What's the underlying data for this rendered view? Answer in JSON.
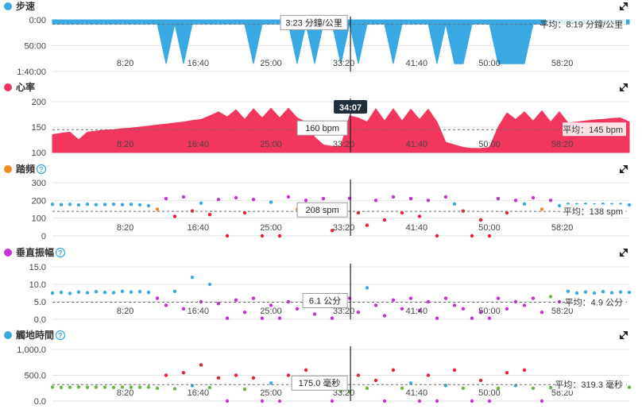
{
  "colors": {
    "pace": "#3aa9e3",
    "heart": "#f2365e",
    "cad_blue": "#3aa9e3",
    "cad_green": "#6ab744",
    "cad_orange": "#f28a27",
    "cad_red": "#ef1c3a",
    "cad_purple": "#c632d5"
  },
  "cursor_time": "34:07",
  "x_ticks": [
    "8:20",
    "16:40",
    "25:00",
    "33:20",
    "41:40",
    "50:00",
    "58:20"
  ],
  "chart_data": [
    {
      "id": "pace",
      "type": "area",
      "title": "步速",
      "has_help": false,
      "yticks": [
        "0:00",
        "50:00",
        "1:40:00"
      ],
      "ylim": [
        0,
        100
      ],
      "y_reversed": true,
      "x_minutes": [
        0,
        1,
        2,
        3,
        4,
        5,
        6,
        7,
        8,
        9,
        10,
        11,
        12,
        13,
        14,
        15,
        16,
        17,
        18,
        19,
        20,
        21,
        22,
        23,
        24,
        25,
        26,
        27,
        28,
        29,
        30,
        31,
        32,
        33,
        34,
        35,
        36,
        37,
        38,
        39,
        40,
        41,
        42,
        43,
        44,
        45,
        46,
        47,
        48,
        49,
        50,
        51,
        52,
        53,
        54,
        55,
        56,
        57,
        58,
        59,
        60,
        61,
        62,
        63,
        64,
        65,
        66
      ],
      "values": [
        8,
        8,
        8,
        8,
        8,
        8,
        8,
        8,
        8,
        8,
        8,
        8,
        8,
        85,
        8,
        85,
        8,
        8,
        8,
        8,
        8,
        8,
        8,
        85,
        8,
        8,
        8,
        8,
        85,
        8,
        85,
        8,
        8,
        85,
        8,
        85,
        8,
        8,
        8,
        85,
        8,
        8,
        8,
        8,
        85,
        8,
        85,
        85,
        8,
        8,
        8,
        85,
        85,
        85,
        85,
        8,
        8,
        8,
        8,
        8,
        8,
        8,
        8,
        8,
        8,
        8,
        8
      ],
      "cursor_label": "3:23 分鐘/公里",
      "avg_label": "平均：8:19 分鐘/公里",
      "avg_value": 8.3
    },
    {
      "id": "heart",
      "type": "area",
      "title": "心率",
      "has_help": false,
      "yticks": [
        "200",
        "150",
        "100"
      ],
      "ylim": [
        100,
        200
      ],
      "x_minutes": [
        0,
        1,
        2,
        3,
        4,
        5,
        6,
        7,
        8,
        9,
        10,
        11,
        12,
        13,
        14,
        15,
        16,
        17,
        18,
        19,
        20,
        21,
        22,
        23,
        24,
        25,
        26,
        27,
        28,
        29,
        30,
        31,
        32,
        33,
        34,
        35,
        36,
        37,
        38,
        39,
        40,
        41,
        42,
        43,
        44,
        45,
        46,
        47,
        48,
        49,
        50,
        51,
        52,
        53,
        54,
        55,
        56,
        57,
        58,
        59,
        60,
        61,
        62,
        63,
        64,
        65,
        66
      ],
      "values": [
        135,
        138,
        140,
        125,
        140,
        142,
        144,
        145,
        147,
        148,
        150,
        152,
        154,
        156,
        158,
        160,
        163,
        165,
        172,
        180,
        170,
        184,
        165,
        186,
        168,
        187,
        168,
        187,
        168,
        160,
        130,
        115,
        112,
        112,
        172,
        168,
        160,
        186,
        162,
        186,
        162,
        185,
        165,
        185,
        160,
        120,
        115,
        110,
        108,
        108,
        110,
        150,
        178,
        165,
        180,
        162,
        182,
        160,
        180,
        158,
        160,
        162,
        164,
        165,
        167,
        168,
        160
      ],
      "cursor_label": "160 bpm",
      "avg_label": "平均：145 bpm",
      "avg_value": 145
    },
    {
      "id": "cadence",
      "type": "scatter",
      "title": "踏頻",
      "has_help": true,
      "yticks": [
        "300",
        "200",
        "100",
        "0"
      ],
      "ylim": [
        0,
        300
      ],
      "x_minutes": [
        0,
        1,
        2,
        3,
        4,
        5,
        6,
        7,
        8,
        9,
        10,
        11,
        12,
        13,
        14,
        15,
        16,
        17,
        18,
        19,
        20,
        21,
        22,
        23,
        24,
        25,
        26,
        27,
        28,
        29,
        30,
        31,
        32,
        33,
        34,
        35,
        36,
        37,
        38,
        39,
        40,
        41,
        42,
        43,
        44,
        45,
        46,
        47,
        48,
        49,
        50,
        51,
        52,
        53,
        54,
        55,
        56,
        57,
        58,
        59,
        60,
        61,
        62,
        63,
        64,
        65,
        66
      ],
      "values": [
        178,
        176,
        178,
        175,
        178,
        176,
        177,
        178,
        176,
        178,
        175,
        170,
        150,
        210,
        110,
        220,
        140,
        185,
        120,
        205,
        0,
        215,
        130,
        205,
        0,
        190,
        0,
        220,
        150,
        200,
        120,
        210,
        30,
        145,
        212,
        130,
        60,
        200,
        90,
        220,
        130,
        210,
        110,
        200,
        0,
        220,
        180,
        140,
        0,
        90,
        0,
        210,
        130,
        200,
        180,
        215,
        150,
        200,
        170,
        178,
        176,
        178,
        175,
        178,
        176,
        177,
        175
      ],
      "cursor_label": "208 spm",
      "avg_label": "平均：138 spm",
      "avg_value": 138
    },
    {
      "id": "vosc",
      "type": "scatter",
      "title": "垂直振幅",
      "has_help": true,
      "yticks": [
        "15.0",
        "10.0",
        "5.0",
        "0.0"
      ],
      "ylim": [
        0,
        15
      ],
      "x_minutes": [
        0,
        1,
        2,
        3,
        4,
        5,
        6,
        7,
        8,
        9,
        10,
        11,
        12,
        13,
        14,
        15,
        16,
        17,
        18,
        19,
        20,
        21,
        22,
        23,
        24,
        25,
        26,
        27,
        28,
        29,
        30,
        31,
        32,
        33,
        34,
        35,
        36,
        37,
        38,
        39,
        40,
        41,
        42,
        43,
        44,
        45,
        46,
        47,
        48,
        49,
        50,
        51,
        52,
        53,
        54,
        55,
        56,
        57,
        58,
        59,
        60,
        61,
        62,
        63,
        64,
        65,
        66
      ],
      "values": [
        7.5,
        7.7,
        7.4,
        7.8,
        7.6,
        7.9,
        7.7,
        7.6,
        8.0,
        7.8,
        7.9,
        7.7,
        6.0,
        4.0,
        8.0,
        3.0,
        12.0,
        5.0,
        10.0,
        4.5,
        0.3,
        5.5,
        2.0,
        6.0,
        0.3,
        4.0,
        0.3,
        5.0,
        3.0,
        6.0,
        1.5,
        5.0,
        0.3,
        6.5,
        6.0,
        2.0,
        9.0,
        4.0,
        1.0,
        5.5,
        3.0,
        6.0,
        2.5,
        5.0,
        0.3,
        6.0,
        4.0,
        3.0,
        0.3,
        2.0,
        0.3,
        6.0,
        3.0,
        5.0,
        4.0,
        6.0,
        2.0,
        6.5,
        5.0,
        8.0,
        7.5,
        7.8,
        7.5,
        7.9,
        7.6,
        7.8,
        7.7
      ],
      "cursor_label": "6.1 公分",
      "avg_label": "平均：4.9 公分",
      "avg_value": 4.9
    },
    {
      "id": "gct",
      "type": "scatter",
      "title": "觸地時間",
      "has_help": true,
      "yticks": [
        "1,000.0",
        "500.0",
        "0.0"
      ],
      "ylim": [
        0,
        1000
      ],
      "x_minutes": [
        0,
        1,
        2,
        3,
        4,
        5,
        6,
        7,
        8,
        9,
        10,
        11,
        12,
        13,
        14,
        15,
        16,
        17,
        18,
        19,
        20,
        21,
        22,
        23,
        24,
        25,
        26,
        27,
        28,
        29,
        30,
        31,
        32,
        33,
        34,
        35,
        36,
        37,
        38,
        39,
        40,
        41,
        42,
        43,
        44,
        45,
        46,
        47,
        48,
        49,
        50,
        51,
        52,
        53,
        54,
        55,
        56,
        57,
        58,
        59,
        60,
        61,
        62,
        63,
        64,
        65,
        66
      ],
      "values": [
        270,
        265,
        268,
        272,
        266,
        270,
        268,
        265,
        270,
        268,
        266,
        270,
        250,
        500,
        240,
        550,
        300,
        700,
        260,
        450,
        0,
        500,
        230,
        450,
        0,
        350,
        0,
        500,
        300,
        600,
        250,
        400,
        0,
        200,
        180,
        500,
        250,
        400,
        0,
        600,
        250,
        350,
        0,
        500,
        0,
        300,
        600,
        250,
        0,
        400,
        0,
        250,
        550,
        300,
        600,
        250,
        0,
        260,
        265,
        270,
        268,
        266,
        270,
        268,
        265,
        270,
        268
      ],
      "cursor_label": "175.0 毫秒",
      "avg_label": "平均：319.3 毫秒",
      "avg_value": 319.3
    }
  ]
}
